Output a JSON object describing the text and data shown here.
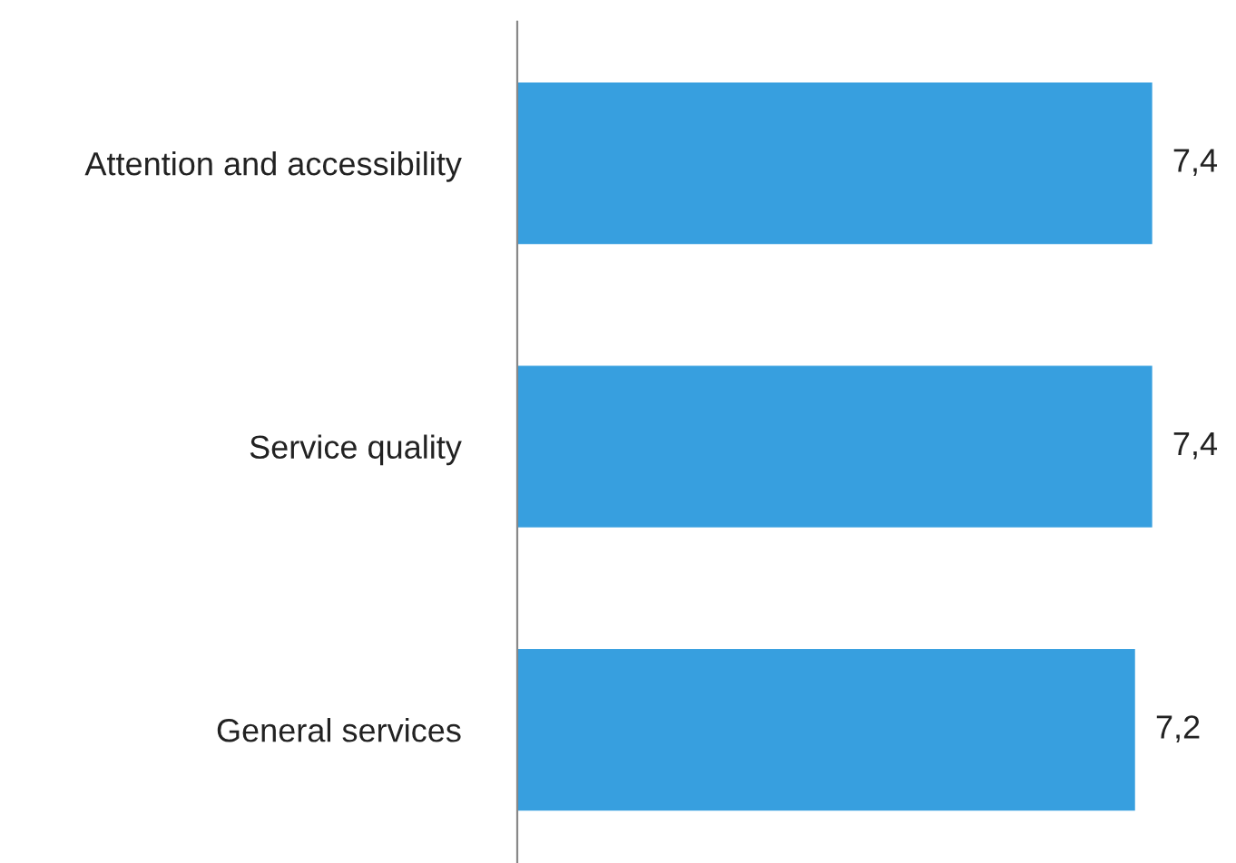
{
  "chart_data": {
    "type": "bar",
    "orientation": "horizontal",
    "categories": [
      "Attention and accessibility",
      "Service quality",
      "General services"
    ],
    "values": [
      7.4,
      7.4,
      7.2
    ],
    "value_labels": [
      "7,4",
      "7,4",
      "7,2"
    ],
    "color": "#379fdf",
    "grid": false,
    "legend": false
  }
}
